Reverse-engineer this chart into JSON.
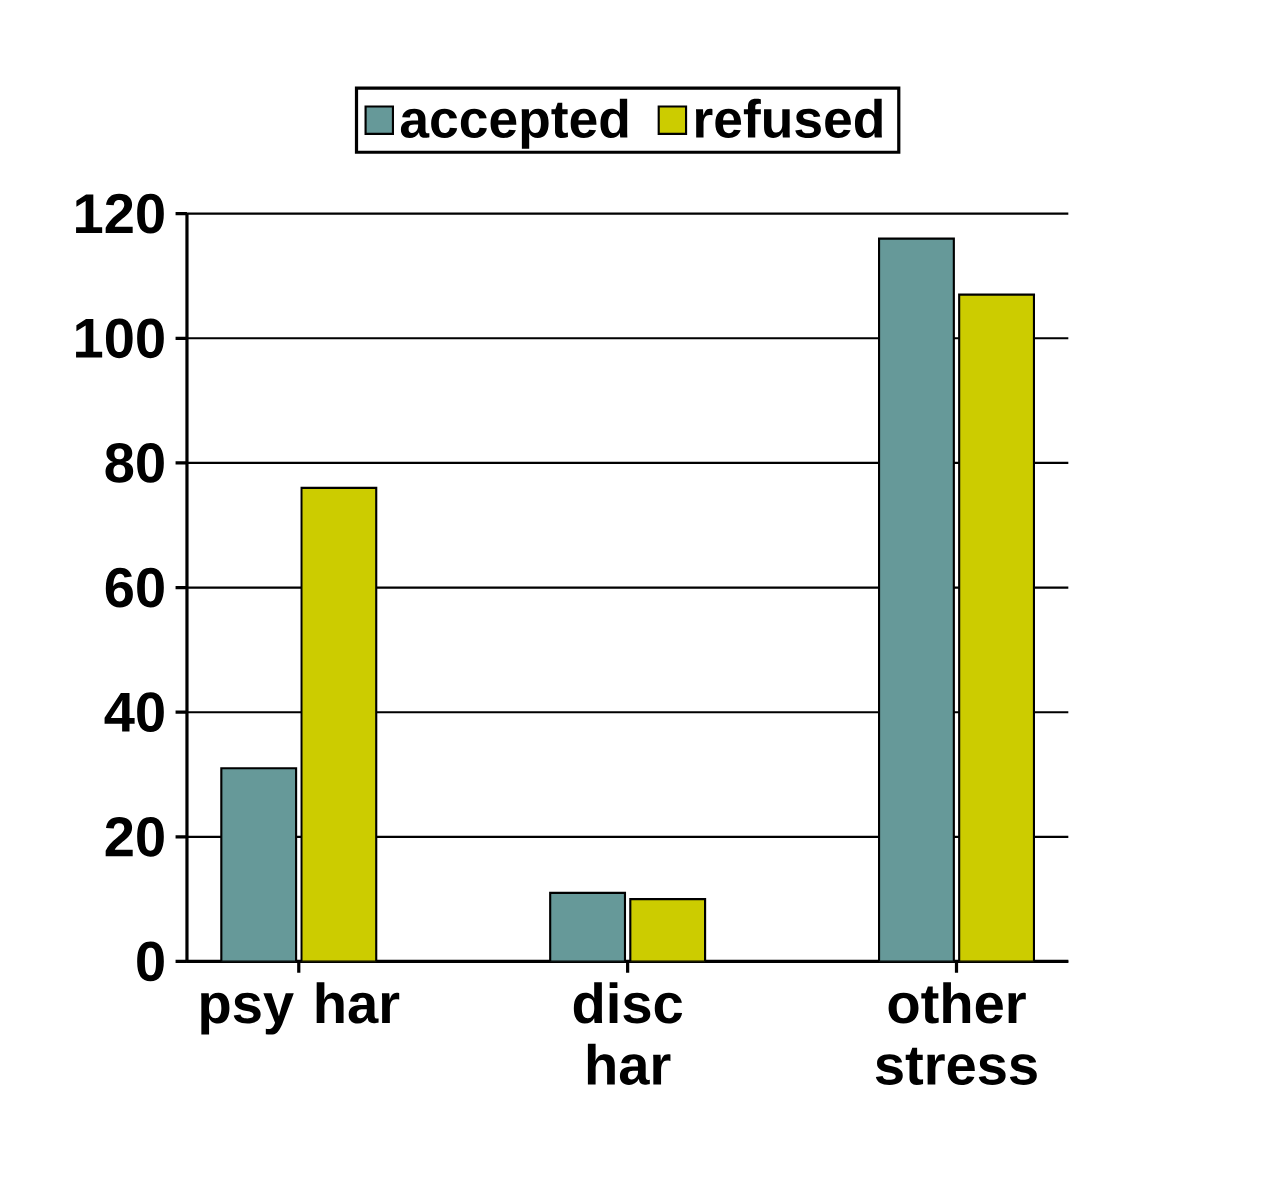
{
  "chart_data": {
    "type": "bar",
    "categories": [
      "psy har",
      "disc har",
      "other stress"
    ],
    "series": [
      {
        "name": "accepted",
        "color": "#669999",
        "values": [
          31,
          11,
          116
        ]
      },
      {
        "name": "refused",
        "color": "#cccc00",
        "values": [
          76,
          10,
          107
        ]
      }
    ],
    "ylim": [
      0,
      120
    ],
    "yticks": [
      0,
      20,
      40,
      60,
      80,
      100,
      120
    ],
    "grid": "y",
    "legend": "top"
  }
}
